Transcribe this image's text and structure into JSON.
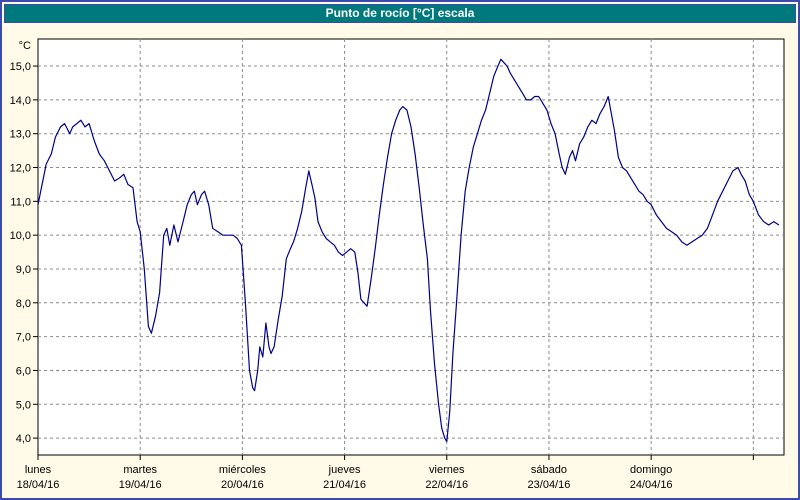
{
  "window": {
    "title": "Punto de rocío [°C] escala"
  },
  "colors": {
    "page_bg": "#fffbe8",
    "border_blue": "#3a4aad",
    "titlebar_bg": "#00797d",
    "titlebar_text": "#ffffff",
    "plot_bg": "#ffffff",
    "grid": "#8c8c8c",
    "axis": "#000000",
    "line": "#00008b",
    "text": "#000000"
  },
  "chart_data": {
    "type": "line",
    "title": "Punto de rocío [°C] escala",
    "ylabel": "°C",
    "xlabel": "",
    "grid": "dashed",
    "legend": "none",
    "ylim": [
      3.5,
      15.8
    ],
    "xlim": [
      0,
      7.3
    ],
    "y_ticks": [
      {
        "v": 15,
        "label": "15,0"
      },
      {
        "v": 14,
        "label": "14,0"
      },
      {
        "v": 13,
        "label": "13,0"
      },
      {
        "v": 12,
        "label": "12,0"
      },
      {
        "v": 11,
        "label": "11,0"
      },
      {
        "v": 10,
        "label": "10,0"
      },
      {
        "v": 9,
        "label": "9,0"
      },
      {
        "v": 8,
        "label": "8,0"
      },
      {
        "v": 7,
        "label": "7,0"
      },
      {
        "v": 6,
        "label": "6,0"
      },
      {
        "v": 5,
        "label": "5,0"
      },
      {
        "v": 4,
        "label": "4,0"
      }
    ],
    "x_ticks": [
      {
        "pos": 0,
        "day": "lunes",
        "date": "18/04/16"
      },
      {
        "pos": 1,
        "day": "martes",
        "date": "19/04/16"
      },
      {
        "pos": 2,
        "day": "miércoles",
        "date": "20/04/16"
      },
      {
        "pos": 3,
        "day": "jueves",
        "date": "21/04/16"
      },
      {
        "pos": 4,
        "day": "viernes",
        "date": "22/04/16"
      },
      {
        "pos": 5,
        "day": "sábado",
        "date": "23/04/16"
      },
      {
        "pos": 6,
        "day": "domingo",
        "date": "24/04/16"
      }
    ],
    "x_gridlines": [
      1,
      2,
      3,
      4,
      5,
      6,
      7
    ],
    "series": [
      {
        "name": "Punto de rocío [°C]",
        "x": [
          0.0,
          0.04,
          0.08,
          0.13,
          0.17,
          0.22,
          0.26,
          0.31,
          0.34,
          0.38,
          0.42,
          0.46,
          0.5,
          0.55,
          0.6,
          0.65,
          0.7,
          0.75,
          0.8,
          0.84,
          0.88,
          0.93,
          0.97,
          1.0,
          1.04,
          1.08,
          1.11,
          1.15,
          1.19,
          1.23,
          1.26,
          1.29,
          1.33,
          1.37,
          1.42,
          1.46,
          1.5,
          1.53,
          1.56,
          1.6,
          1.63,
          1.67,
          1.71,
          1.76,
          1.81,
          1.86,
          1.91,
          1.95,
          1.99,
          2.03,
          2.07,
          2.1,
          2.12,
          2.15,
          2.17,
          2.2,
          2.23,
          2.26,
          2.28,
          2.31,
          2.35,
          2.39,
          2.43,
          2.47,
          2.5,
          2.54,
          2.58,
          2.62,
          2.65,
          2.68,
          2.71,
          2.74,
          2.78,
          2.82,
          2.86,
          2.9,
          2.94,
          2.98,
          3.02,
          3.06,
          3.1,
          3.13,
          3.16,
          3.19,
          3.22,
          3.26,
          3.3,
          3.34,
          3.38,
          3.42,
          3.46,
          3.5,
          3.54,
          3.57,
          3.61,
          3.65,
          3.69,
          3.73,
          3.77,
          3.81,
          3.84,
          3.88,
          3.92,
          3.95,
          3.98,
          4.0,
          4.03,
          4.06,
          4.1,
          4.14,
          4.18,
          4.22,
          4.26,
          4.3,
          4.34,
          4.38,
          4.42,
          4.46,
          4.5,
          4.53,
          4.56,
          4.59,
          4.62,
          4.66,
          4.7,
          4.74,
          4.78,
          4.82,
          4.86,
          4.9,
          4.94,
          4.98,
          5.02,
          5.06,
          5.1,
          5.13,
          5.16,
          5.2,
          5.23,
          5.26,
          5.3,
          5.34,
          5.38,
          5.42,
          5.46,
          5.5,
          5.54,
          5.58,
          5.61,
          5.64,
          5.68,
          5.72,
          5.76,
          5.8,
          5.84,
          5.88,
          5.92,
          5.96,
          6.0,
          6.05,
          6.1,
          6.15,
          6.2,
          6.25,
          6.3,
          6.35,
          6.4,
          6.45,
          6.5,
          6.55,
          6.6,
          6.65,
          6.7,
          6.75,
          6.8,
          6.85,
          6.88,
          6.92,
          6.96,
          7.0,
          7.05,
          7.1,
          7.15,
          7.2,
          7.25
        ],
        "y": [
          10.9,
          11.5,
          12.1,
          12.4,
          12.9,
          13.2,
          13.3,
          13.0,
          13.2,
          13.3,
          13.4,
          13.2,
          13.3,
          12.8,
          12.4,
          12.2,
          11.9,
          11.6,
          11.7,
          11.8,
          11.5,
          11.4,
          10.4,
          10.1,
          9.0,
          7.3,
          7.1,
          7.6,
          8.3,
          10.0,
          10.2,
          9.7,
          10.3,
          9.8,
          10.4,
          10.9,
          11.2,
          11.3,
          10.9,
          11.2,
          11.3,
          10.9,
          10.2,
          10.1,
          10.0,
          10.0,
          10.0,
          9.9,
          9.7,
          8.0,
          6.0,
          5.5,
          5.4,
          6.0,
          6.7,
          6.4,
          7.4,
          6.7,
          6.5,
          6.7,
          7.5,
          8.2,
          9.3,
          9.6,
          9.8,
          10.2,
          10.7,
          11.4,
          11.9,
          11.5,
          11.1,
          10.4,
          10.1,
          9.9,
          9.8,
          9.7,
          9.5,
          9.4,
          9.5,
          9.6,
          9.5,
          8.9,
          8.1,
          8.0,
          7.9,
          8.7,
          9.6,
          10.6,
          11.5,
          12.3,
          13.0,
          13.4,
          13.7,
          13.8,
          13.7,
          13.2,
          12.4,
          11.4,
          10.3,
          9.3,
          7.8,
          6.2,
          5.0,
          4.3,
          4.0,
          3.9,
          4.8,
          6.5,
          8.2,
          10.0,
          11.3,
          12.0,
          12.6,
          13.0,
          13.4,
          13.7,
          14.2,
          14.7,
          15.0,
          15.2,
          15.1,
          15.0,
          14.8,
          14.6,
          14.4,
          14.2,
          14.0,
          14.0,
          14.1,
          14.1,
          13.9,
          13.7,
          13.3,
          13.0,
          12.4,
          12.0,
          11.8,
          12.3,
          12.5,
          12.2,
          12.7,
          12.9,
          13.2,
          13.4,
          13.3,
          13.6,
          13.8,
          14.1,
          13.6,
          13.1,
          12.3,
          12.0,
          11.9,
          11.7,
          11.5,
          11.3,
          11.2,
          11.0,
          10.9,
          10.6,
          10.4,
          10.2,
          10.1,
          10.0,
          9.8,
          9.7,
          9.8,
          9.9,
          10.0,
          10.2,
          10.6,
          11.0,
          11.3,
          11.6,
          11.9,
          12.0,
          11.8,
          11.6,
          11.2,
          11.0,
          10.6,
          10.4,
          10.3,
          10.4,
          10.3
        ]
      }
    ]
  }
}
